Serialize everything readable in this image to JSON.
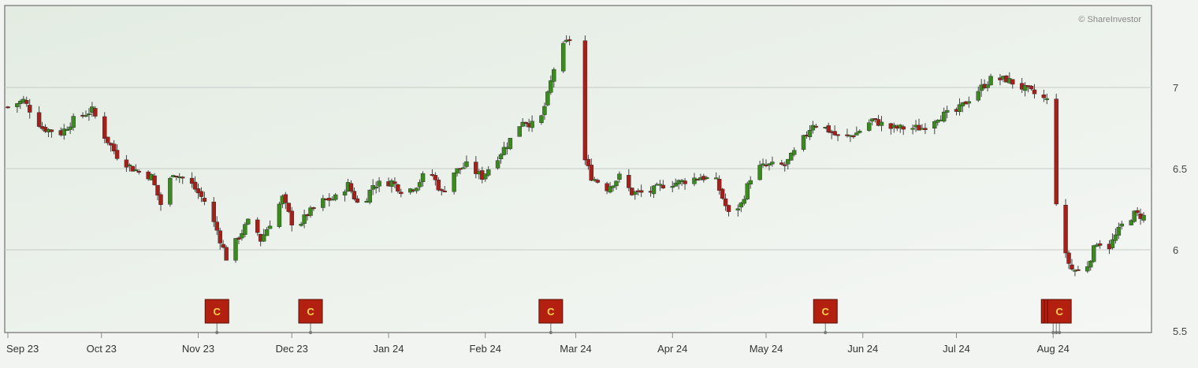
{
  "copyright": "© ShareInvestor",
  "colors": {
    "up": "#3a8a1e",
    "down": "#a3201b",
    "wick": "#444444",
    "grid": "#c5ccc5",
    "marker": "#b3200f",
    "marker_text": "#ffd24a"
  },
  "chart_data": {
    "type": "candlestick",
    "title": "",
    "xlabel": "",
    "ylabel": "",
    "ylim": [
      5.5,
      7.5
    ],
    "y_ticks": [
      7,
      6.5,
      6,
      5.5
    ],
    "grid": true,
    "x_range": [
      "2023-09-01",
      "2024-08-31"
    ],
    "month_labels": [
      {
        "date": "2023-09-01",
        "label": "Sep 23"
      },
      {
        "date": "2023-10-01",
        "label": "Oct 23"
      },
      {
        "date": "2023-11-01",
        "label": "Nov 23"
      },
      {
        "date": "2023-12-01",
        "label": "Dec 23"
      },
      {
        "date": "2024-01-01",
        "label": "Jan 24"
      },
      {
        "date": "2024-02-01",
        "label": "Feb 24"
      },
      {
        "date": "2024-03-01",
        "label": "Mar 24"
      },
      {
        "date": "2024-04-01",
        "label": "Apr 24"
      },
      {
        "date": "2024-05-01",
        "label": "May 24"
      },
      {
        "date": "2024-06-01",
        "label": "Jun 24"
      },
      {
        "date": "2024-07-01",
        "label": "Jul 24"
      },
      {
        "date": "2024-08-01",
        "label": "Aug 24"
      }
    ],
    "close_path": [
      [
        "2023-09-01",
        6.88
      ],
      [
        "2023-09-06",
        6.92
      ],
      [
        "2023-09-12",
        6.75
      ],
      [
        "2023-09-18",
        6.72
      ],
      [
        "2023-09-22",
        6.8
      ],
      [
        "2023-09-28",
        6.86
      ],
      [
        "2023-10-02",
        6.7
      ],
      [
        "2023-10-06",
        6.58
      ],
      [
        "2023-10-11",
        6.5
      ],
      [
        "2023-10-17",
        6.45
      ],
      [
        "2023-10-20",
        6.28
      ],
      [
        "2023-10-24",
        6.48
      ],
      [
        "2023-10-30",
        6.4
      ],
      [
        "2023-11-03",
        6.3
      ],
      [
        "2023-11-07",
        6.12
      ],
      [
        "2023-11-10",
        5.95
      ],
      [
        "2023-11-14",
        6.08
      ],
      [
        "2023-11-18",
        6.2
      ],
      [
        "2023-11-21",
        6.06
      ],
      [
        "2023-11-25",
        6.2
      ],
      [
        "2023-11-28",
        6.32
      ],
      [
        "2023-12-02",
        6.12
      ],
      [
        "2023-12-06",
        6.22
      ],
      [
        "2023-12-11",
        6.3
      ],
      [
        "2023-12-15",
        6.32
      ],
      [
        "2023-12-19",
        6.4
      ],
      [
        "2023-12-23",
        6.25
      ],
      [
        "2023-12-27",
        6.4
      ],
      [
        "2024-01-02",
        6.42
      ],
      [
        "2024-01-06",
        6.35
      ],
      [
        "2024-01-10",
        6.4
      ],
      [
        "2024-01-14",
        6.5
      ],
      [
        "2024-01-18",
        6.35
      ],
      [
        "2024-01-22",
        6.48
      ],
      [
        "2024-01-26",
        6.52
      ],
      [
        "2024-01-31",
        6.45
      ],
      [
        "2024-02-04",
        6.55
      ],
      [
        "2024-02-08",
        6.65
      ],
      [
        "2024-02-13",
        6.8
      ],
      [
        "2024-02-18",
        6.75
      ],
      [
        "2024-02-21",
        6.95
      ],
      [
        "2024-02-24",
        7.2
      ],
      [
        "2024-02-28",
        7.3
      ],
      [
        "2024-03-02",
        6.65
      ],
      [
        "2024-03-06",
        6.45
      ],
      [
        "2024-03-11",
        6.38
      ],
      [
        "2024-03-15",
        6.45
      ],
      [
        "2024-03-19",
        6.35
      ],
      [
        "2024-03-24",
        6.35
      ],
      [
        "2024-03-29",
        6.4
      ],
      [
        "2024-04-04",
        6.42
      ],
      [
        "2024-04-10",
        6.45
      ],
      [
        "2024-04-15",
        6.42
      ],
      [
        "2024-04-19",
        6.22
      ],
      [
        "2024-04-23",
        6.28
      ],
      [
        "2024-04-27",
        6.5
      ],
      [
        "2024-05-02",
        6.52
      ],
      [
        "2024-05-07",
        6.52
      ],
      [
        "2024-05-12",
        6.65
      ],
      [
        "2024-05-16",
        6.78
      ],
      [
        "2024-05-20",
        6.75
      ],
      [
        "2024-05-25",
        6.68
      ],
      [
        "2024-05-30",
        6.72
      ],
      [
        "2024-06-04",
        6.8
      ],
      [
        "2024-06-10",
        6.75
      ],
      [
        "2024-06-15",
        6.75
      ],
      [
        "2024-06-20",
        6.75
      ],
      [
        "2024-06-25",
        6.82
      ],
      [
        "2024-07-01",
        6.85
      ],
      [
        "2024-07-06",
        6.95
      ],
      [
        "2024-07-12",
        7.05
      ],
      [
        "2024-07-17",
        7.05
      ],
      [
        "2024-07-22",
        7.0
      ],
      [
        "2024-07-27",
        6.95
      ],
      [
        "2024-07-30",
        6.92
      ],
      [
        "2024-08-02",
        6.3
      ],
      [
        "2024-08-04",
        6.0
      ],
      [
        "2024-08-07",
        5.88
      ],
      [
        "2024-08-11",
        5.86
      ],
      [
        "2024-08-15",
        6.05
      ],
      [
        "2024-08-19",
        6.02
      ],
      [
        "2024-08-23",
        6.15
      ],
      [
        "2024-08-27",
        6.22
      ],
      [
        "2024-08-31",
        6.2
      ]
    ],
    "missing_ranges": [
      [
        "2024-02-28",
        "2024-03-02"
      ],
      [
        "2024-07-30",
        "2024-08-02"
      ]
    ],
    "markers": [
      {
        "date": "2023-11-07",
        "label": "C"
      },
      {
        "date": "2023-12-07",
        "label": "C"
      },
      {
        "date": "2024-02-22",
        "label": "C"
      },
      {
        "date": "2024-05-20",
        "label": "C"
      },
      {
        "date": "2024-08-01",
        "label": "C"
      },
      {
        "date": "2024-08-02",
        "label": "C"
      },
      {
        "date": "2024-08-03",
        "label": "C"
      }
    ]
  }
}
